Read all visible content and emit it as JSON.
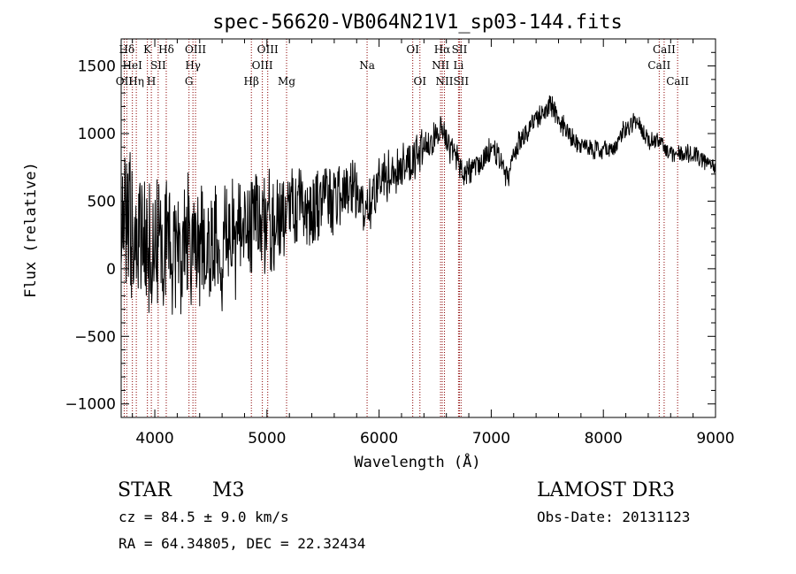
{
  "chart_data": {
    "type": "line",
    "title": "spec-56620-VB064N21V1_sp03-144.fits",
    "xlabel": "Wavelength (Å)",
    "ylabel": "Flux (relative)",
    "xlim": [
      3700,
      9000
    ],
    "ylim": [
      -1100,
      1700
    ],
    "x_ticks": [
      4000,
      5000,
      6000,
      7000,
      8000,
      9000
    ],
    "x_tick_labels": [
      "4000",
      "5000",
      "6000",
      "7000",
      "8000",
      "9000"
    ],
    "y_ticks": [
      -1000,
      -500,
      0,
      500,
      1000,
      1500
    ],
    "y_tick_labels": [
      "−1000",
      "−500",
      "0",
      "500",
      "1000",
      "1500"
    ],
    "grid": false,
    "series": [
      {
        "name": "spectrum",
        "anchors_x": [
          3700,
          3800,
          3900,
          4000,
          4100,
          4200,
          4300,
          4400,
          4500,
          4600,
          4700,
          4800,
          4900,
          5000,
          5100,
          5200,
          5300,
          5400,
          5500,
          5600,
          5700,
          5800,
          5900,
          6000,
          6100,
          6200,
          6300,
          6400,
          6500,
          6560,
          6600,
          6700,
          6750,
          6800,
          6900,
          7000,
          7050,
          7100,
          7150,
          7200,
          7300,
          7400,
          7500,
          7550,
          7600,
          7700,
          7800,
          7900,
          8000,
          8100,
          8200,
          8300,
          8400,
          8500,
          8600,
          8700,
          8800,
          8900,
          9000
        ],
        "anchors_y": [
          300,
          250,
          200,
          200,
          180,
          150,
          200,
          150,
          200,
          150,
          200,
          250,
          300,
          350,
          350,
          400,
          450,
          450,
          500,
          500,
          550,
          550,
          400,
          650,
          700,
          750,
          800,
          900,
          1000,
          1050,
          950,
          800,
          700,
          700,
          750,
          900,
          850,
          750,
          650,
          850,
          1000,
          1100,
          1180,
          1200,
          1100,
          1000,
          900,
          880,
          870,
          900,
          1050,
          1100,
          950,
          950,
          850,
          850,
          850,
          800,
          750
        ],
        "noise_amplitude_x": [
          3700,
          4500,
          5000,
          5500,
          6000,
          6500,
          7000,
          8000,
          9000
        ],
        "noise_amplitude_y": [
          500,
          400,
          330,
          230,
          170,
          110,
          90,
          60,
          60
        ]
      }
    ],
    "line_markers": [
      {
        "label": "Hδ",
        "wavelength": 3750,
        "row": 0
      },
      {
        "label": "OII",
        "wavelength": 3727,
        "row": 2
      },
      {
        "label": "HeI",
        "wavelength": 3800,
        "row": 1
      },
      {
        "label": "Hη",
        "wavelength": 3835,
        "row": 2
      },
      {
        "label": "K",
        "wavelength": 3934,
        "row": 0
      },
      {
        "label": "SII",
        "wavelength": 4030,
        "row": 1
      },
      {
        "label": "H",
        "wavelength": 3969,
        "row": 2
      },
      {
        "label": "Hδ",
        "wavelength": 4102,
        "row": 0
      },
      {
        "label": "OIII",
        "wavelength": 4363,
        "row": 0
      },
      {
        "label": "Hγ",
        "wavelength": 4340,
        "row": 1
      },
      {
        "label": "G",
        "wavelength": 4305,
        "row": 2
      },
      {
        "label": "Hβ",
        "wavelength": 4861,
        "row": 2
      },
      {
        "label": "OIII",
        "wavelength": 5007,
        "row": 0
      },
      {
        "label": "OIII",
        "wavelength": 4959,
        "row": 1
      },
      {
        "label": "Mg",
        "wavelength": 5175,
        "row": 2
      },
      {
        "label": "Na",
        "wavelength": 5893,
        "row": 1
      },
      {
        "label": "OI",
        "wavelength": 6300,
        "row": 0
      },
      {
        "label": "OI",
        "wavelength": 6364,
        "row": 2
      },
      {
        "label": "Hα",
        "wavelength": 6563,
        "row": 0
      },
      {
        "label": "NII",
        "wavelength": 6548,
        "row": 1
      },
      {
        "label": "NII",
        "wavelength": 6583,
        "row": 2
      },
      {
        "label": "SII",
        "wavelength": 6717,
        "row": 0
      },
      {
        "label": "Li",
        "wavelength": 6708,
        "row": 1
      },
      {
        "label": "SII",
        "wavelength": 6731,
        "row": 2
      },
      {
        "label": "CaII",
        "wavelength": 8542,
        "row": 0
      },
      {
        "label": "CaII",
        "wavelength": 8498,
        "row": 1
      },
      {
        "label": "CaII",
        "wavelength": 8662,
        "row": 2
      }
    ]
  },
  "info": {
    "object_class": "STAR",
    "subclass": "M3",
    "cz_line": "cz = 84.5 ± 9.0 km/s",
    "coords_line": "RA =  64.34805, DEC =  22.32434",
    "survey": "LAMOST DR3",
    "obs_date": "Obs-Date: 20131123"
  },
  "colors": {
    "background": "#ffffff",
    "spectrum": "#000000",
    "axes": "#000000",
    "marker_line": "#8b0000"
  }
}
